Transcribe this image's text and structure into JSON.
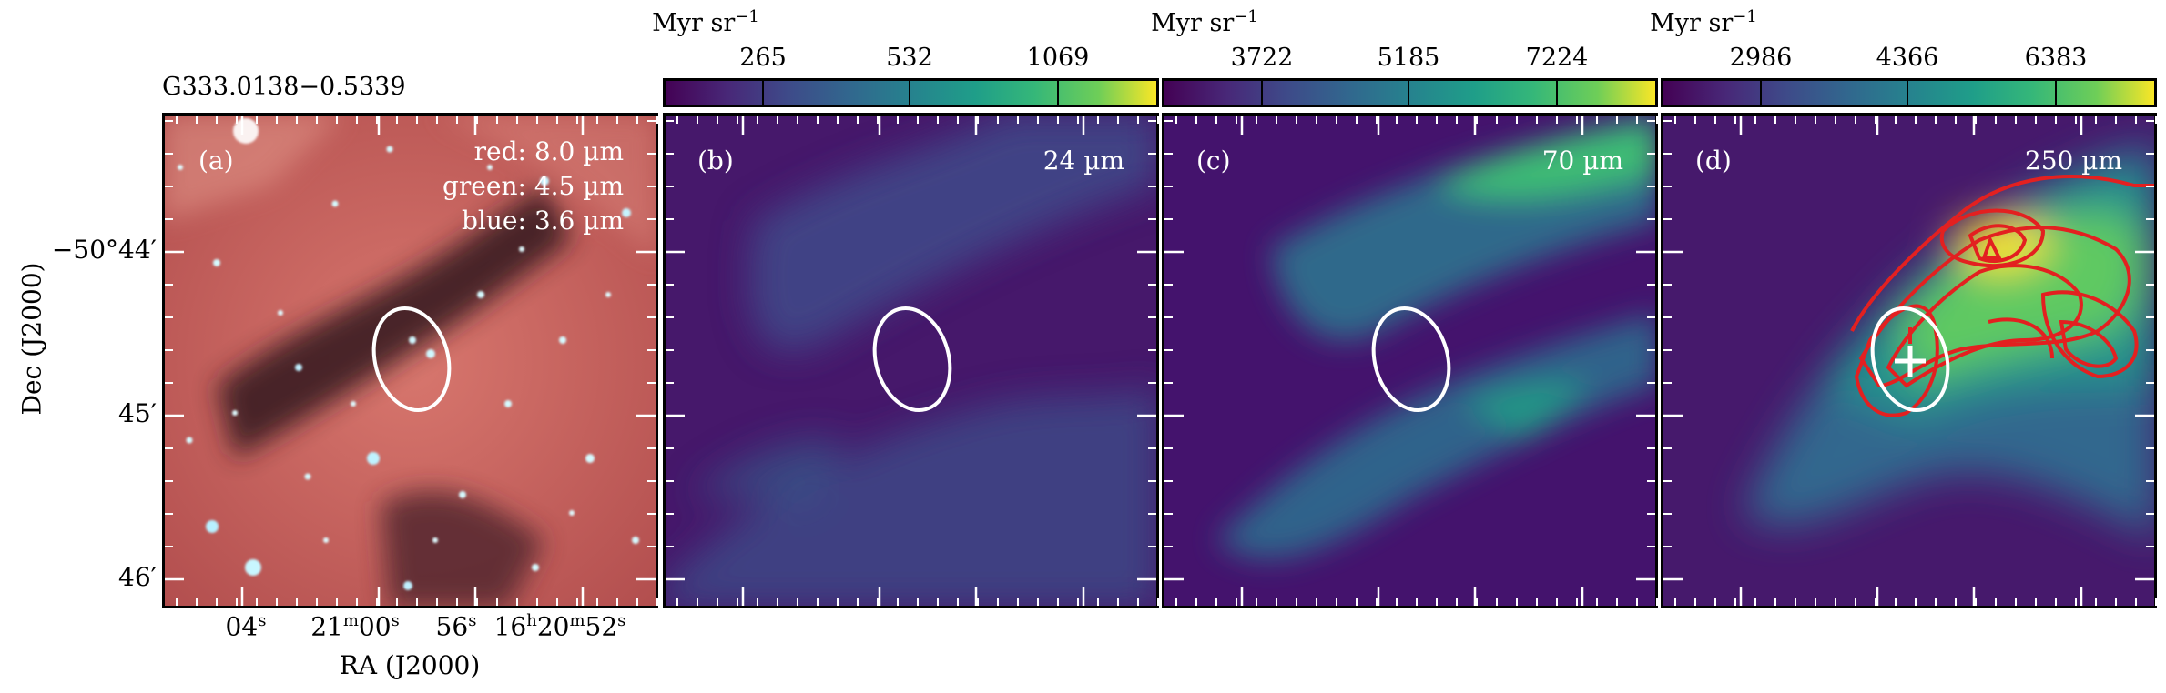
{
  "figure": {
    "source_name": "G333.0138−0.5339",
    "xlabel": "RA (J2000)",
    "ylabel": "Dec (J2000)",
    "dec_ticks": [
      "−50°44′",
      "45′",
      "46′"
    ],
    "ra_ticks": [
      {
        "main": "04",
        "sup": "s",
        "pre": ""
      },
      {
        "pre": "21",
        "pre_sup": "m",
        "main": "00",
        "sup": "s"
      },
      {
        "main": "56",
        "sup": "s",
        "pre": ""
      },
      {
        "pre": "16",
        "pre_sup": "h",
        "pre2": "20",
        "pre2_sup": "m",
        "main": "52",
        "sup": "s"
      }
    ]
  },
  "panels": [
    {
      "label": "(a)",
      "legend": [
        "red: 8.0 µm",
        "green: 4.5 µm",
        "blue: 3.6 µm"
      ]
    },
    {
      "label": "(b)",
      "wavelength": "24 µm",
      "colorbar": {
        "unit": "Myr sr",
        "unit_exp": "−1",
        "ticks": [
          "265",
          "532",
          "1069"
        ],
        "cmap": "viridis"
      }
    },
    {
      "label": "(c)",
      "wavelength": "70 µm",
      "colorbar": {
        "unit": "Myr sr",
        "unit_exp": "−1",
        "ticks": [
          "3722",
          "5185",
          "7224"
        ],
        "cmap": "viridis"
      }
    },
    {
      "label": "(d)",
      "wavelength": "250 µm",
      "colorbar": {
        "unit": "Myr sr",
        "unit_exp": "−1",
        "ticks": [
          "2986",
          "4366",
          "6383"
        ],
        "cmap": "viridis"
      }
    }
  ],
  "colors": {
    "viridis_low": "#440154",
    "viridis_mid": "#21918c",
    "viridis_high": "#fde725",
    "ellipse": "#ffffff",
    "contour": "#e32020"
  }
}
